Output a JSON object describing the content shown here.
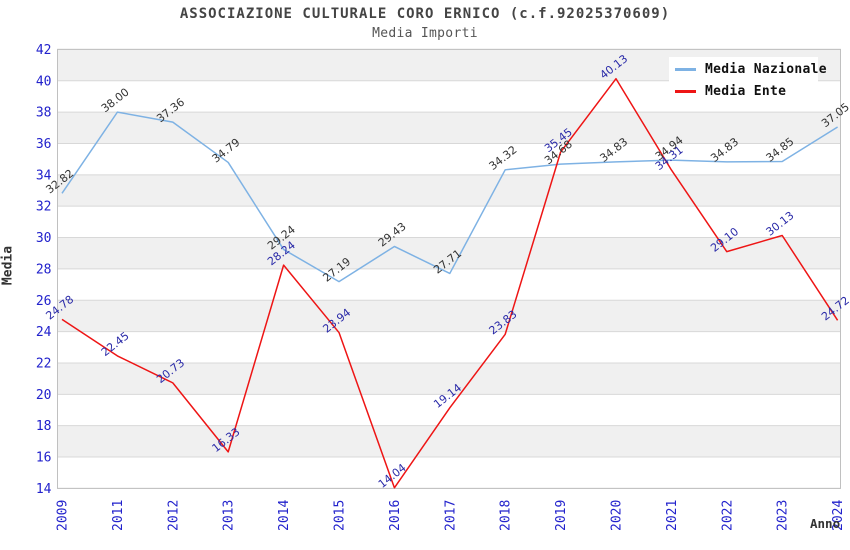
{
  "chart_data": {
    "type": "line",
    "title": "ASSOCIAZIONE CULTURALE CORO ERNICO (c.f.92025370609)",
    "subtitle": "Media Importi",
    "xlabel": "Anno",
    "ylabel": "Media",
    "categories": [
      "2009",
      "2011",
      "2012",
      "2013",
      "2014",
      "2015",
      "2016",
      "2017",
      "2018",
      "2019",
      "2020",
      "2021",
      "2022",
      "2023",
      "2024"
    ],
    "series": [
      {
        "name": "Media Nazionale",
        "color": "#7eb2e4",
        "label_color": "#333333",
        "values": [
          32.82,
          38.0,
          37.36,
          34.79,
          29.24,
          27.19,
          29.43,
          27.71,
          34.32,
          34.68,
          34.83,
          34.94,
          34.83,
          34.85,
          37.05
        ]
      },
      {
        "name": "Media Ente",
        "color": "#ee1515",
        "label_color": "#2a2aa8",
        "values": [
          24.78,
          22.45,
          20.73,
          16.33,
          28.24,
          23.94,
          14.04,
          19.14,
          23.83,
          35.45,
          40.13,
          34.31,
          29.1,
          30.13,
          24.72
        ]
      }
    ],
    "ylim": [
      14,
      42
    ],
    "ytick_step": 2,
    "grid": true,
    "legend_position": "top-right",
    "colors": {
      "tick_label": "#2222cc",
      "band": "#f0f0f0",
      "gridline": "#d8d8d8",
      "border": "#c0c0c0",
      "title": "#444444"
    }
  }
}
